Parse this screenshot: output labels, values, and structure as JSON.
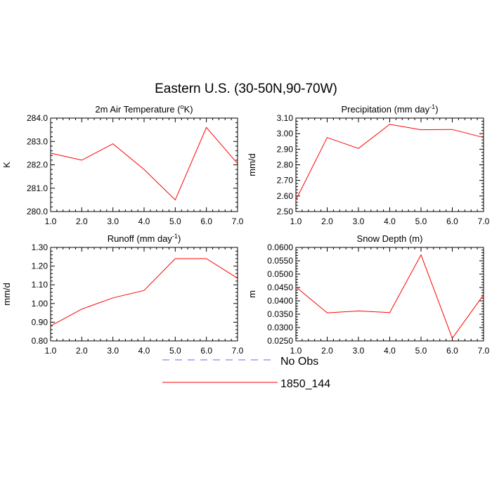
{
  "figure": {
    "title": "Eastern U.S. (30-50N,90-70W)",
    "legend": {
      "placement": "bottom-center",
      "entries": [
        {
          "label": "No Obs",
          "color": "#6666ff",
          "dash": "dashed"
        },
        {
          "label": "1850_144",
          "color": "#ff0000",
          "dash": "solid"
        }
      ]
    }
  },
  "chart_data": [
    {
      "type": "line",
      "title": "2m Air Temperature (",
      "title_sup": "o",
      "title_after": "K)",
      "ylabel": "K",
      "xlabel": "",
      "xlim": [
        1,
        7
      ],
      "ylim": [
        280,
        284
      ],
      "x_ticks": [
        "1.0",
        "2.0",
        "3.0",
        "4.0",
        "5.0",
        "6.0",
        "7.0"
      ],
      "y_ticks": [
        "280.0",
        "281.0",
        "282.0",
        "283.0",
        "284.0"
      ],
      "series": [
        {
          "name": "1850_144",
          "color": "#ff0000",
          "x": [
            1,
            2,
            3,
            4,
            5,
            6,
            7
          ],
          "y": [
            282.5,
            282.2,
            282.9,
            281.8,
            280.5,
            283.6,
            282.05
          ]
        }
      ]
    },
    {
      "type": "line",
      "title": "Precipitation (mm day",
      "title_sup": "-1",
      "title_after": ")",
      "ylabel": "mm/d",
      "xlabel": "",
      "xlim": [
        1,
        7
      ],
      "ylim": [
        2.5,
        3.1
      ],
      "x_ticks": [
        "1.0",
        "2.0",
        "3.0",
        "4.0",
        "5.0",
        "6.0",
        "7.0"
      ],
      "y_ticks": [
        "2.50",
        "2.60",
        "2.70",
        "2.80",
        "2.90",
        "3.00",
        "3.10"
      ],
      "series": [
        {
          "name": "1850_144",
          "color": "#ff0000",
          "x": [
            1,
            2,
            3,
            4,
            5,
            6,
            7
          ],
          "y": [
            2.575,
            2.975,
            2.905,
            3.06,
            3.025,
            3.027,
            2.975
          ]
        }
      ]
    },
    {
      "type": "line",
      "title": "Runoff (mm day",
      "title_sup": "-1",
      "title_after": ")",
      "ylabel": "mm/d",
      "xlabel": "",
      "xlim": [
        1,
        7
      ],
      "ylim": [
        0.8,
        1.3
      ],
      "x_ticks": [
        "1.0",
        "2.0",
        "3.0",
        "4.0",
        "5.0",
        "6.0",
        "7.0"
      ],
      "y_ticks": [
        "0.80",
        "0.90",
        "1.00",
        "1.10",
        "1.20",
        "1.30"
      ],
      "series": [
        {
          "name": "1850_144",
          "color": "#ff0000",
          "x": [
            1,
            2,
            3,
            4,
            5,
            6,
            7
          ],
          "y": [
            0.88,
            0.97,
            1.03,
            1.07,
            1.24,
            1.24,
            1.135
          ]
        }
      ]
    },
    {
      "type": "line",
      "title": "Snow Depth (m)",
      "title_sup": "",
      "title_after": "",
      "ylabel": "m",
      "xlabel": "",
      "xlim": [
        1,
        7
      ],
      "ylim": [
        0.025,
        0.06
      ],
      "x_ticks": [
        "1.0",
        "2.0",
        "3.0",
        "4.0",
        "5.0",
        "6.0",
        "7.0"
      ],
      "y_ticks": [
        "0.0250",
        "0.0300",
        "0.0350",
        "0.0400",
        "0.0450",
        "0.0500",
        "0.0550",
        "0.0600"
      ],
      "series": [
        {
          "name": "1850_144",
          "color": "#ff0000",
          "x": [
            1,
            2,
            3,
            4,
            5,
            6,
            7
          ],
          "y": [
            0.0452,
            0.0355,
            0.0362,
            0.0356,
            0.0572,
            0.026,
            0.0422
          ]
        }
      ]
    }
  ]
}
